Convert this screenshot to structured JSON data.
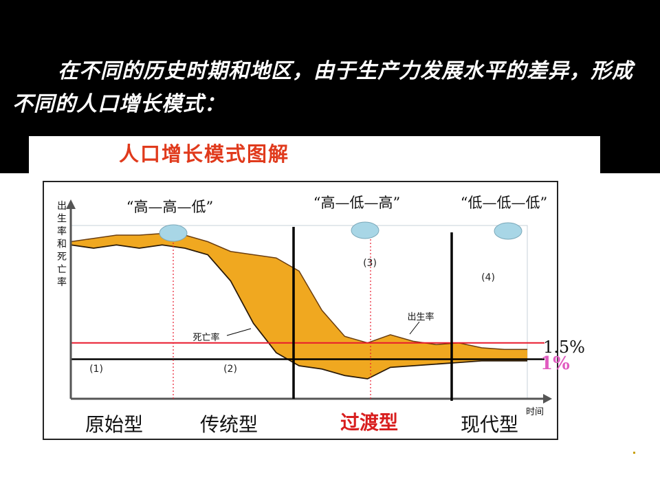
{
  "slide": {
    "title": "在不同的历史时期和地区，由于生产力发展水平的差异，形成不同的人口增长模式："
  },
  "chart_data": {
    "type": "area",
    "title": "人口增长模式图解",
    "ylabel": "出生率和死亡率",
    "xlabel": "时间",
    "patterns": [
      "“高—高—低”",
      "“高—低—高”",
      "“低—低—低”"
    ],
    "stage_markers": [
      "(1)",
      "(2)",
      "(3)",
      "(4)"
    ],
    "stages": [
      "原始型",
      "传统型",
      "过渡型",
      "现代型"
    ],
    "reference_lines": [
      {
        "label": "1.5%",
        "value": 1.5,
        "color": "#e8192c"
      },
      {
        "label": "1%",
        "value": 1.0,
        "color": "#e05bc0"
      }
    ],
    "series": [
      {
        "name": "出生率",
        "x": [
          0,
          5,
          10,
          15,
          20,
          25,
          30,
          35,
          40,
          45,
          50,
          55,
          60,
          65,
          70,
          75,
          80,
          85,
          90,
          95,
          100
        ],
        "y": [
          4.6,
          4.7,
          4.8,
          4.8,
          4.85,
          4.8,
          4.6,
          4.3,
          4.2,
          4.1,
          3.7,
          2.5,
          1.7,
          1.5,
          1.75,
          1.55,
          1.45,
          1.5,
          1.35,
          1.3,
          1.3
        ]
      },
      {
        "name": "死亡率",
        "x": [
          0,
          5,
          10,
          15,
          20,
          25,
          30,
          35,
          40,
          45,
          50,
          55,
          60,
          65,
          70,
          75,
          80,
          85,
          90,
          95,
          100
        ],
        "y": [
          4.5,
          4.4,
          4.5,
          4.4,
          4.5,
          4.4,
          4.2,
          3.4,
          2.1,
          1.2,
          0.8,
          0.7,
          0.5,
          0.4,
          0.75,
          0.8,
          0.85,
          0.9,
          0.95,
          0.95,
          0.95
        ]
      }
    ],
    "colors": {
      "fill": "#f0a820",
      "dashed": "#e8192c",
      "circle": "#a8d6e6",
      "transition_label": "#d81e1e"
    }
  }
}
